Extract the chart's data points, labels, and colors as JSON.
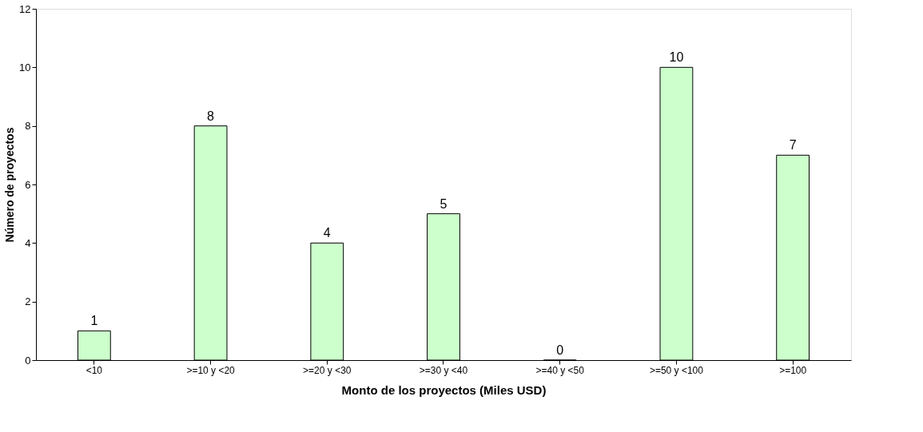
{
  "chart_data": {
    "type": "bar",
    "xlabel": "Monto de los proyectos (Miles USD)",
    "ylabel": "Número de proyectos",
    "categories": [
      "<10",
      ">=10 y <20",
      ">=20 y <30",
      ">=30 y <40",
      ">=40 y <50",
      ">=50 y <100",
      ">=100"
    ],
    "values": [
      1,
      8,
      4,
      5,
      0,
      10,
      7
    ],
    "color": "#ccffcc",
    "ylim": [
      0,
      12
    ],
    "yticks": [
      0,
      2,
      4,
      6,
      8,
      10,
      12
    ],
    "grid": false,
    "data_labels": true
  }
}
